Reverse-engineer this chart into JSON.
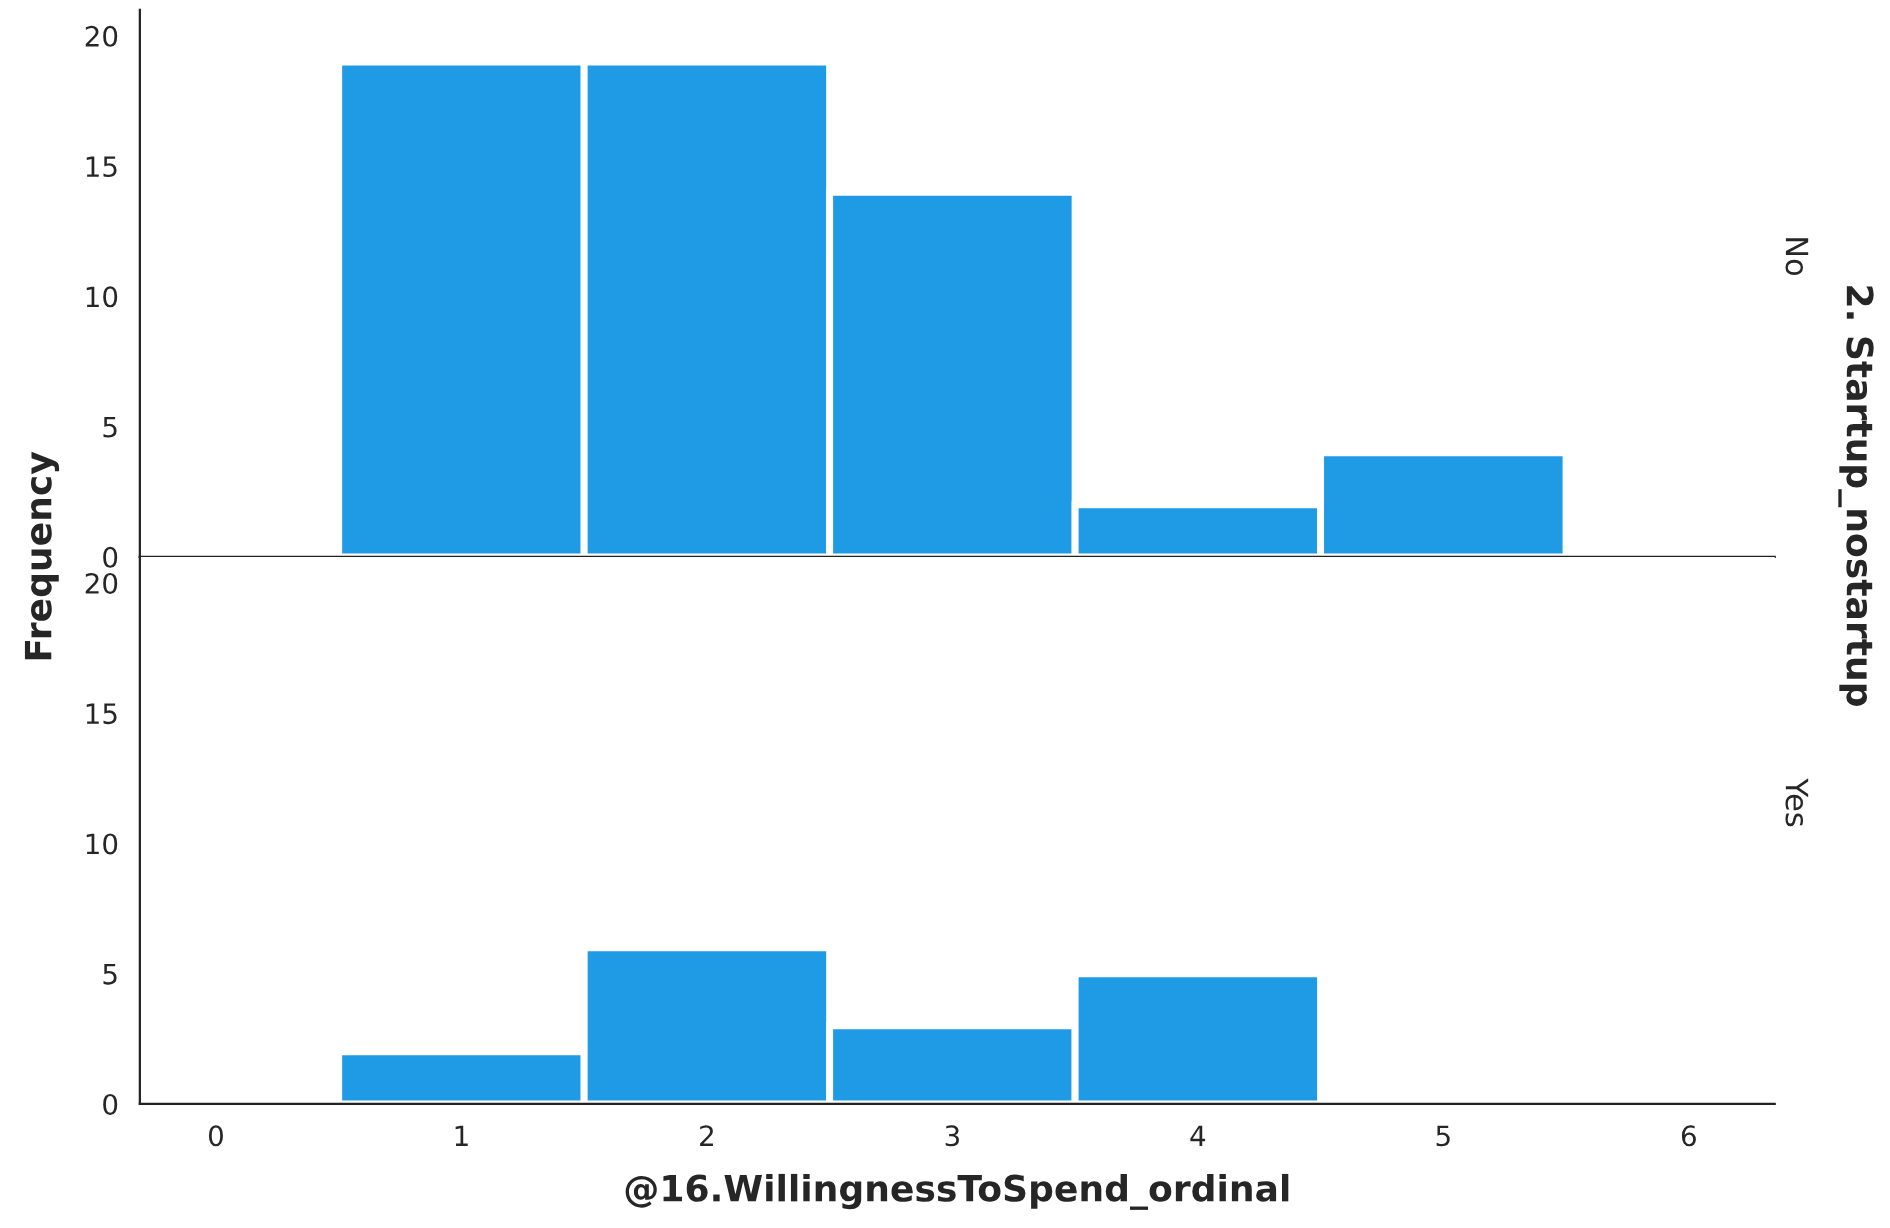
{
  "chart_data": [
    {
      "type": "histogram",
      "bins": [
        0.5,
        1.5,
        2.5,
        3.5,
        4.5,
        5.5
      ],
      "values": [
        19,
        19,
        14,
        2,
        4
      ],
      "color": "#1f9ae5",
      "xlim": [
        -0.31,
        6.35
      ],
      "xticks": [
        0,
        1,
        2,
        3,
        4,
        5,
        6
      ],
      "ylim": [
        0,
        21
      ],
      "yticks": [
        0,
        5,
        10,
        15,
        20
      ],
      "tick_labels": "y",
      "grid": false,
      "ylabel": "Frequency",
      "annotations": [
        "No",
        "2. Startup_nostartup"
      ]
    },
    {
      "type": "histogram",
      "bins": [
        0.5,
        1.5,
        2.5,
        3.5,
        4.5
      ],
      "values": [
        2,
        6,
        3,
        5
      ],
      "color": "#1f9ae5",
      "xlim": [
        -0.31,
        6.35
      ],
      "xticks": [
        0,
        1,
        2,
        3,
        4,
        5,
        6
      ],
      "ylim": [
        0,
        21
      ],
      "yticks": [
        0,
        5,
        10,
        15,
        20
      ],
      "grid": false,
      "xlabel": "@16.WillingnessToSpend_ordinal",
      "annotations": [
        "Yes"
      ]
    }
  ]
}
